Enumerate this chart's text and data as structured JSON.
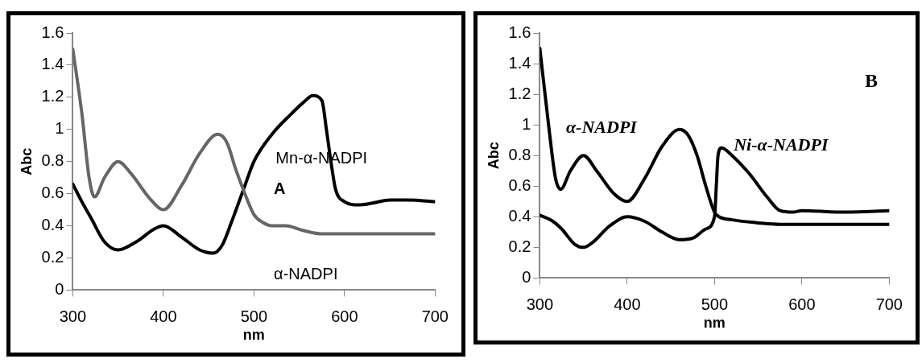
{
  "chart_data": [
    {
      "type": "line",
      "xlabel": "nm",
      "ylabel": "Abc",
      "xlim": [
        300,
        700
      ],
      "xticks": [
        300,
        400,
        500,
        600,
        700
      ],
      "ylim": [
        0,
        1.6
      ],
      "yticks": [
        0,
        0.2,
        0.4,
        0.6,
        0.8,
        1,
        1.2,
        1.4,
        1.6
      ],
      "grid": false,
      "legend": false,
      "marker": "none",
      "line_style": "solid",
      "series": [
        {
          "color": "#666666",
          "x": [
            300,
            310,
            318,
            324,
            335,
            350,
            365,
            385,
            400,
            420,
            440,
            460,
            470,
            480,
            490,
            500,
            510,
            520,
            535,
            555,
            575,
            600,
            650,
            700
          ],
          "values": [
            1.5,
            1.1,
            0.7,
            0.58,
            0.7,
            0.8,
            0.72,
            0.57,
            0.5,
            0.65,
            0.85,
            0.97,
            0.92,
            0.75,
            0.6,
            0.47,
            0.42,
            0.4,
            0.4,
            0.37,
            0.35,
            0.35,
            0.35,
            0.35
          ]
        },
        {
          "color": "#000000",
          "x": [
            300,
            310,
            320,
            335,
            350,
            370,
            390,
            400,
            420,
            440,
            455,
            465,
            475,
            490,
            500,
            520,
            540,
            555,
            565,
            575,
            580,
            585,
            590,
            600,
            615,
            630,
            650,
            670,
            700
          ],
          "values": [
            0.66,
            0.55,
            0.45,
            0.3,
            0.25,
            0.3,
            0.38,
            0.4,
            0.33,
            0.25,
            0.23,
            0.28,
            0.42,
            0.65,
            0.8,
            0.97,
            1.09,
            1.17,
            1.21,
            1.18,
            1,
            0.8,
            0.63,
            0.55,
            0.53,
            0.54,
            0.56,
            0.56,
            0.55
          ]
        }
      ],
      "annotations": [
        "Mn-α-NADPI",
        "A",
        "α-NADPI"
      ]
    },
    {
      "type": "line",
      "xlabel": "nm",
      "ylabel": "Abc",
      "xlim": [
        300,
        700
      ],
      "xticks": [
        300,
        400,
        500,
        600,
        700
      ],
      "ylim": [
        0,
        1.6
      ],
      "yticks": [
        0,
        0.2,
        0.4,
        0.6,
        0.8,
        1,
        1.2,
        1.4,
        1.6
      ],
      "grid": false,
      "legend": false,
      "marker": "none",
      "line_style": "solid",
      "series": [
        {
          "color": "#000000",
          "x": [
            300,
            310,
            318,
            324,
            335,
            350,
            365,
            385,
            400,
            420,
            440,
            460,
            470,
            480,
            490,
            500,
            505,
            520,
            550,
            575,
            600,
            700
          ],
          "values": [
            1.5,
            1,
            0.65,
            0.58,
            0.7,
            0.8,
            0.7,
            0.55,
            0.5,
            0.65,
            0.86,
            0.97,
            0.93,
            0.8,
            0.6,
            0.43,
            0.4,
            0.38,
            0.36,
            0.35,
            0.35,
            0.35
          ]
        },
        {
          "color": "#000000",
          "x": [
            300,
            315,
            325,
            340,
            350,
            360,
            380,
            400,
            420,
            440,
            460,
            475,
            490,
            500,
            502,
            504,
            508,
            520,
            540,
            560,
            575,
            590,
            600,
            650,
            700
          ],
          "values": [
            0.41,
            0.37,
            0.32,
            0.22,
            0.2,
            0.23,
            0.34,
            0.4,
            0.37,
            0.3,
            0.25,
            0.26,
            0.32,
            0.4,
            0.6,
            0.8,
            0.85,
            0.8,
            0.68,
            0.53,
            0.44,
            0.43,
            0.44,
            0.43,
            0.44
          ]
        }
      ],
      "annotations": [
        "α-NADPI",
        "Ni-α-NADPI",
        "B"
      ]
    }
  ]
}
